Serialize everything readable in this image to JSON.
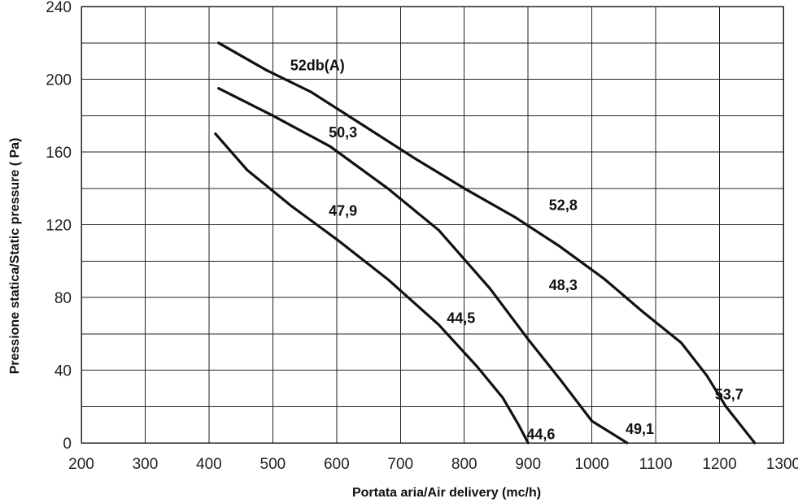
{
  "chart_data": {
    "type": "line",
    "title": "",
    "xlabel": "Portata aria/Air delivery (mc/h)",
    "ylabel": "Pressione statica/Static pressure ( Pa)",
    "xlim": [
      200,
      1300
    ],
    "ylim": [
      0,
      240
    ],
    "x_ticks": [
      200,
      300,
      400,
      500,
      600,
      700,
      800,
      900,
      1000,
      1100,
      1200,
      1300
    ],
    "y_ticks": [
      0,
      40,
      80,
      120,
      160,
      200,
      240
    ],
    "grid": true,
    "series": [
      {
        "points": [
          [
            410,
            170
          ],
          [
            460,
            150
          ],
          [
            530,
            130
          ],
          [
            600,
            112
          ],
          [
            680,
            90
          ],
          [
            760,
            65
          ],
          [
            820,
            42
          ],
          [
            860,
            25
          ],
          [
            885,
            10
          ],
          [
            900,
            0
          ]
        ]
      },
      {
        "points": [
          [
            415,
            195
          ],
          [
            500,
            180
          ],
          [
            590,
            163
          ],
          [
            680,
            140
          ],
          [
            760,
            117
          ],
          [
            840,
            85
          ],
          [
            900,
            57
          ],
          [
            950,
            35
          ],
          [
            1000,
            12
          ],
          [
            1055,
            0
          ]
        ]
      },
      {
        "points": [
          [
            415,
            220
          ],
          [
            490,
            205
          ],
          [
            560,
            193
          ],
          [
            640,
            175
          ],
          [
            720,
            157
          ],
          [
            800,
            140
          ],
          [
            880,
            124
          ],
          [
            950,
            108
          ],
          [
            1020,
            90
          ],
          [
            1080,
            72
          ],
          [
            1140,
            55
          ],
          [
            1180,
            37
          ],
          [
            1210,
            20
          ],
          [
            1255,
            0
          ]
        ]
      }
    ],
    "annotations": [
      {
        "text": "52db(A)",
        "x": 570,
        "y": 205
      },
      {
        "text": "50,3",
        "x": 610,
        "y": 168
      },
      {
        "text": "47,9",
        "x": 610,
        "y": 125
      },
      {
        "text": "52,8",
        "x": 955,
        "y": 128
      },
      {
        "text": "48,3",
        "x": 955,
        "y": 84
      },
      {
        "text": "44,5",
        "x": 795,
        "y": 66
      },
      {
        "text": "44,6",
        "x": 920,
        "y": 2
      },
      {
        "text": "49,1",
        "x": 1075,
        "y": 5
      },
      {
        "text": "53,7",
        "x": 1215,
        "y": 24
      }
    ]
  }
}
